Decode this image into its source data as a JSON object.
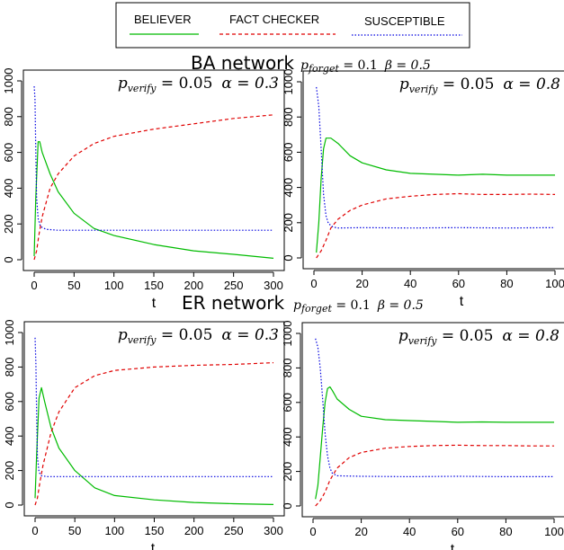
{
  "legend": {
    "items": [
      {
        "label": "BELIEVER",
        "color": "#00bb00",
        "dash": "none"
      },
      {
        "label": "FACT CHECKER",
        "color": "#e00000",
        "dash": "4,3"
      },
      {
        "label": "SUSCEPTIBLE",
        "color": "#0000e0",
        "dash": "1.5,2"
      }
    ]
  },
  "sections": [
    {
      "title": "BA network",
      "params": {
        "p_label": "p",
        "p_sub": "forget",
        "p_val": " = 0.1",
        "beta": "β = 0.5"
      }
    },
    {
      "title": "ER network",
      "params": {
        "p_label": "p",
        "p_sub": "forget",
        "p_val": " = 0.1",
        "beta": "β = 0.5"
      }
    }
  ],
  "chart_data": [
    {
      "type": "line",
      "network": "BA network",
      "annotation": {
        "p_label": "p",
        "p_sub": "verify",
        "p_val": " = 0.05",
        "alpha": "α = 0.3"
      },
      "xlabel": "t",
      "ylabel": "",
      "xlim": [
        0,
        300
      ],
      "ylim": [
        0,
        1000
      ],
      "xticks": [
        0,
        50,
        100,
        150,
        200,
        250,
        300
      ],
      "yticks": [
        0,
        200,
        400,
        600,
        800,
        1000
      ],
      "series": [
        {
          "name": "BELIEVER",
          "x": [
            0,
            2,
            5,
            7,
            10,
            20,
            30,
            50,
            75,
            100,
            150,
            200,
            250,
            300
          ],
          "y": [
            20,
            350,
            660,
            660,
            600,
            480,
            380,
            260,
            175,
            135,
            85,
            50,
            30,
            8
          ]
        },
        {
          "name": "FACT CHECKER",
          "x": [
            0,
            3,
            6,
            10,
            20,
            30,
            50,
            75,
            100,
            150,
            200,
            250,
            300
          ],
          "y": [
            0,
            50,
            140,
            240,
            400,
            480,
            580,
            650,
            690,
            730,
            760,
            790,
            810
          ]
        },
        {
          "name": "SUSCEPTIBLE",
          "x": [
            0,
            1,
            2,
            3,
            5,
            8,
            15,
            30,
            100,
            200,
            300
          ],
          "y": [
            970,
            900,
            600,
            350,
            230,
            185,
            170,
            165,
            165,
            165,
            165
          ]
        }
      ]
    },
    {
      "type": "line",
      "network": "BA network",
      "annotation": {
        "p_label": "p",
        "p_sub": "verify",
        "p_val": " = 0.05",
        "alpha": "α = 0.8"
      },
      "xlabel": "t",
      "ylabel": "",
      "xlim": [
        0,
        100
      ],
      "ylim": [
        0,
        1000
      ],
      "xticks": [
        0,
        20,
        40,
        60,
        80,
        100
      ],
      "yticks": [
        0,
        200,
        400,
        600,
        800,
        1000
      ],
      "series": [
        {
          "name": "BELIEVER",
          "x": [
            1,
            2,
            3,
            4,
            5,
            7,
            10,
            15,
            20,
            30,
            40,
            50,
            60,
            70,
            80,
            90,
            100
          ],
          "y": [
            30,
            200,
            450,
            620,
            680,
            680,
            650,
            580,
            540,
            500,
            480,
            475,
            470,
            475,
            470,
            470,
            470
          ]
        },
        {
          "name": "FACT CHECKER",
          "x": [
            1,
            3,
            5,
            7,
            10,
            15,
            20,
            30,
            40,
            50,
            60,
            70,
            80,
            90,
            100
          ],
          "y": [
            0,
            40,
            100,
            170,
            220,
            270,
            300,
            335,
            350,
            360,
            365,
            360,
            360,
            362,
            360
          ]
        },
        {
          "name": "SUSCEPTIBLE",
          "x": [
            1,
            2,
            3,
            4,
            5,
            6,
            8,
            10,
            20,
            40,
            60,
            80,
            100
          ],
          "y": [
            970,
            860,
            620,
            360,
            240,
            195,
            175,
            170,
            172,
            170,
            172,
            170,
            172
          ]
        }
      ]
    },
    {
      "type": "line",
      "network": "ER network",
      "annotation": {
        "p_label": "p",
        "p_sub": "verify",
        "p_val": " = 0.05",
        "alpha": "α = 0.3"
      },
      "xlabel": "t",
      "ylabel": "",
      "xlim": [
        0,
        300
      ],
      "ylim": [
        0,
        1000
      ],
      "xticks": [
        0,
        50,
        100,
        150,
        200,
        250,
        300
      ],
      "yticks": [
        0,
        200,
        400,
        600,
        800,
        1000
      ],
      "series": [
        {
          "name": "BELIEVER",
          "x": [
            0,
            2,
            5,
            8,
            12,
            20,
            30,
            50,
            75,
            100,
            150,
            200,
            250,
            300
          ],
          "y": [
            40,
            300,
            620,
            680,
            600,
            450,
            330,
            200,
            100,
            55,
            30,
            15,
            8,
            3
          ]
        },
        {
          "name": "FACT CHECKER",
          "x": [
            0,
            3,
            6,
            10,
            20,
            30,
            50,
            75,
            100,
            150,
            200,
            250,
            300
          ],
          "y": [
            0,
            40,
            130,
            230,
            420,
            540,
            680,
            750,
            780,
            800,
            810,
            815,
            825
          ]
        },
        {
          "name": "SUSCEPTIBLE",
          "x": [
            0,
            1,
            2,
            3,
            5,
            8,
            15,
            30,
            100,
            200,
            300
          ],
          "y": [
            970,
            820,
            500,
            280,
            190,
            170,
            165,
            165,
            165,
            165,
            165
          ]
        }
      ]
    },
    {
      "type": "line",
      "network": "ER network",
      "annotation": {
        "p_label": "p",
        "p_sub": "verify",
        "p_val": " = 0.05",
        "alpha": "α = 0.8"
      },
      "xlabel": "t",
      "ylabel": "",
      "xlim": [
        0,
        100
      ],
      "ylim": [
        0,
        1000
      ],
      "xticks": [
        0,
        20,
        40,
        60,
        80,
        100
      ],
      "yticks": [
        0,
        200,
        400,
        600,
        800,
        1000
      ],
      "series": [
        {
          "name": "BELIEVER",
          "x": [
            1,
            2,
            3,
            4,
            5,
            6,
            7,
            8,
            10,
            15,
            20,
            30,
            40,
            50,
            60,
            70,
            80,
            90,
            100
          ],
          "y": [
            40,
            120,
            280,
            450,
            600,
            680,
            690,
            670,
            620,
            560,
            520,
            500,
            495,
            490,
            485,
            487,
            485,
            485,
            485
          ]
        },
        {
          "name": "FACT CHECKER",
          "x": [
            1,
            3,
            5,
            7,
            10,
            15,
            20,
            30,
            40,
            50,
            60,
            70,
            80,
            90,
            100
          ],
          "y": [
            0,
            30,
            80,
            150,
            220,
            280,
            310,
            335,
            345,
            350,
            352,
            350,
            350,
            348,
            348
          ]
        },
        {
          "name": "SUSCEPTIBLE",
          "x": [
            1,
            2,
            3,
            4,
            5,
            6,
            7,
            8,
            10,
            20,
            40,
            60,
            80,
            100
          ],
          "y": [
            970,
            920,
            800,
            620,
            420,
            290,
            220,
            190,
            175,
            172,
            170,
            172,
            170,
            170
          ]
        }
      ]
    }
  ]
}
